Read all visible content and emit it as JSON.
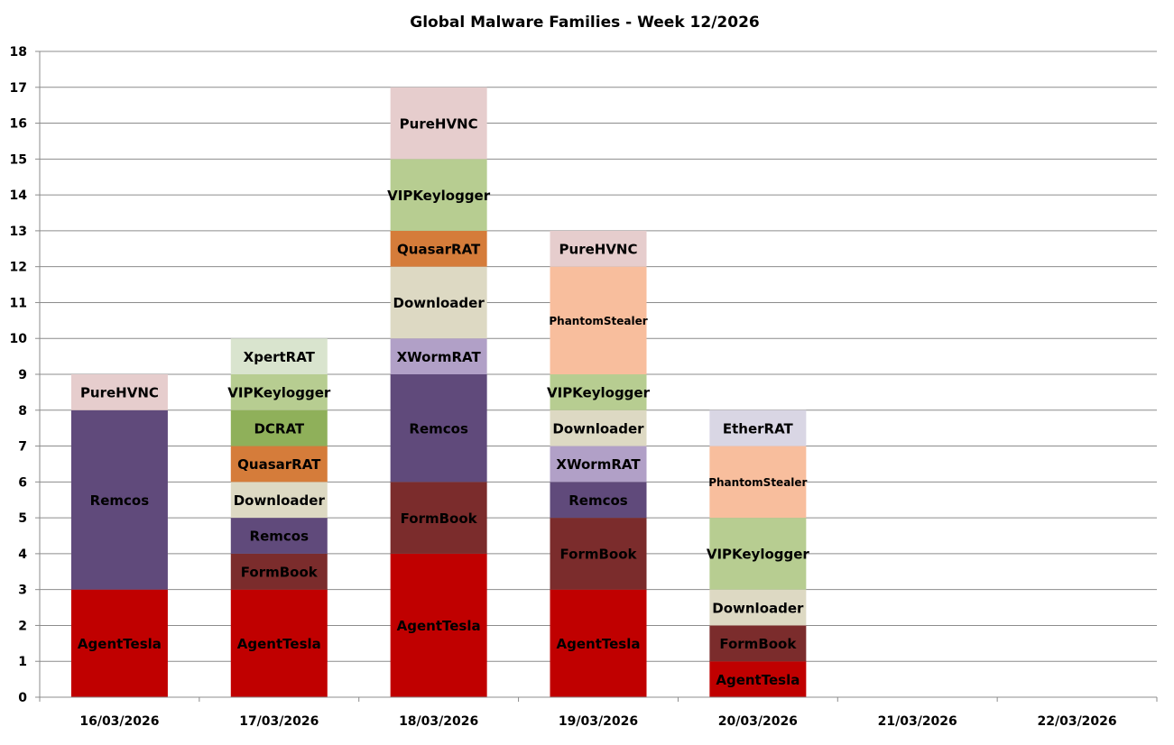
{
  "chart_data": {
    "type": "bar",
    "stacked": true,
    "title": "Global Malware Families - Week 12/2026",
    "xlabel": "",
    "ylabel": "",
    "ylim": [
      0,
      18
    ],
    "yticks": [
      "0",
      "1",
      "2",
      "3",
      "4",
      "5",
      "6",
      "7",
      "8",
      "9",
      "10",
      "11",
      "12",
      "13",
      "14",
      "15",
      "16",
      "17",
      "18"
    ],
    "grid": true,
    "legend": "none",
    "categories": [
      "16/03/2026",
      "17/03/2026",
      "18/03/2026",
      "19/03/2026",
      "20/03/2026",
      "21/03/2026",
      "22/03/2026"
    ],
    "colors": {
      "AgentTesla": "#C00000",
      "FormBook": "#7B2C2C",
      "Remcos": "#604A7B",
      "XWormRAT": "#B1A0C7",
      "Downloader": "#DDD9C3",
      "QuasarRAT": "#D57C3A",
      "DCRAT": "#8FB05A",
      "VIPKeylogger": "#B7CD91",
      "XpertRAT": "#D9E4CE",
      "PhantomStealer": "#F8BE9D",
      "PureHVNC": "#E6CDCD",
      "EtherRAT": "#D9D6E4"
    },
    "stacks": [
      [
        {
          "name": "AgentTesla",
          "value": 3
        },
        {
          "name": "Remcos",
          "value": 5
        },
        {
          "name": "PureHVNC",
          "value": 1
        }
      ],
      [
        {
          "name": "AgentTesla",
          "value": 3
        },
        {
          "name": "FormBook",
          "value": 1
        },
        {
          "name": "Remcos",
          "value": 1
        },
        {
          "name": "Downloader",
          "value": 1
        },
        {
          "name": "QuasarRAT",
          "value": 1
        },
        {
          "name": "DCRAT",
          "value": 1
        },
        {
          "name": "VIPKeylogger",
          "value": 1
        },
        {
          "name": "XpertRAT",
          "value": 1
        }
      ],
      [
        {
          "name": "AgentTesla",
          "value": 4
        },
        {
          "name": "FormBook",
          "value": 2
        },
        {
          "name": "Remcos",
          "value": 3
        },
        {
          "name": "XWormRAT",
          "value": 1
        },
        {
          "name": "Downloader",
          "value": 2
        },
        {
          "name": "QuasarRAT",
          "value": 1
        },
        {
          "name": "VIPKeylogger",
          "value": 2
        },
        {
          "name": "PureHVNC",
          "value": 2
        }
      ],
      [
        {
          "name": "AgentTesla",
          "value": 3
        },
        {
          "name": "FormBook",
          "value": 2
        },
        {
          "name": "Remcos",
          "value": 1
        },
        {
          "name": "XWormRAT",
          "value": 1
        },
        {
          "name": "Downloader",
          "value": 1
        },
        {
          "name": "VIPKeylogger",
          "value": 1
        },
        {
          "name": "PhantomStealer",
          "value": 3
        },
        {
          "name": "PureHVNC",
          "value": 1
        }
      ],
      [
        {
          "name": "AgentTesla",
          "value": 1
        },
        {
          "name": "FormBook",
          "value": 1
        },
        {
          "name": "Downloader",
          "value": 1
        },
        {
          "name": "VIPKeylogger",
          "value": 2
        },
        {
          "name": "PhantomStealer",
          "value": 2
        },
        {
          "name": "EtherRAT",
          "value": 1
        }
      ],
      [],
      []
    ]
  }
}
